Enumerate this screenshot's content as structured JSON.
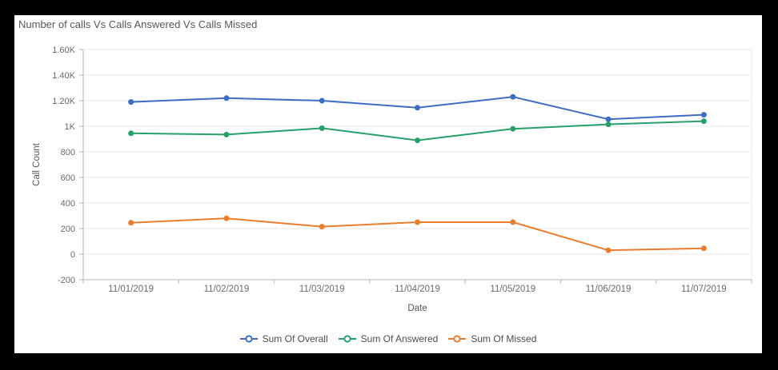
{
  "window": {
    "frame_background": "#000000",
    "panel_background": "#ffffff"
  },
  "header": {
    "title": "Number of calls Vs Calls Answered Vs Calls Missed"
  },
  "chart_data": {
    "type": "line",
    "title": "Number of calls Vs Calls Answered Vs Calls Missed",
    "xlabel": "Date",
    "ylabel": "Call Count",
    "categories": [
      "11/01/2019",
      "11/02/2019",
      "11/03/2019",
      "11/04/2019",
      "11/05/2019",
      "11/06/2019",
      "11/07/2019"
    ],
    "ylim": [
      -200,
      1600
    ],
    "grid": "horizontal",
    "legend_position": "bottom",
    "marker": "circle",
    "y_ticks": [
      {
        "value": -200,
        "label": "-200"
      },
      {
        "value": 0,
        "label": "0"
      },
      {
        "value": 200,
        "label": "200"
      },
      {
        "value": 400,
        "label": "400"
      },
      {
        "value": 600,
        "label": "600"
      },
      {
        "value": 800,
        "label": "800"
      },
      {
        "value": 1000,
        "label": "1K"
      },
      {
        "value": 1200,
        "label": "1.20K"
      },
      {
        "value": 1400,
        "label": "1.40K"
      },
      {
        "value": 1600,
        "label": "1.60K"
      }
    ],
    "series": [
      {
        "name": "Sum Of Overall",
        "color": "#3e6cc0",
        "values": [
          1190,
          1220,
          1200,
          1145,
          1230,
          1055,
          1090
        ]
      },
      {
        "name": "Sum Of Answered",
        "color": "#28a06a",
        "values": [
          945,
          935,
          985,
          890,
          980,
          1015,
          1040
        ]
      },
      {
        "name": "Sum Of Missed",
        "color": "#e87d2e",
        "values": [
          245,
          280,
          215,
          250,
          250,
          30,
          45
        ]
      }
    ]
  }
}
